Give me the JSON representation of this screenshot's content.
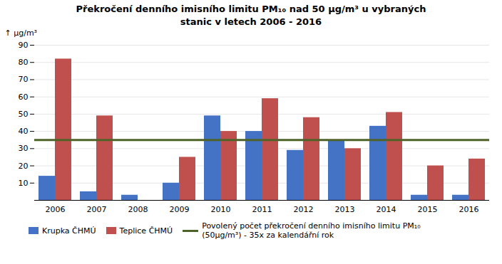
{
  "chart_data": {
    "type": "bar",
    "title": "Překročení denního imisního limitu PM₁₀ nad 50 μg/m³ u vybraných\nstanic v letech 2006 - 2016",
    "ylabel": "μg/m³",
    "categories": [
      2006,
      2007,
      2008,
      2009,
      2010,
      2011,
      2012,
      2013,
      2014,
      2015,
      2016
    ],
    "series": [
      {
        "name": "Krupka ČHMÚ",
        "color": "#4472C4",
        "values": [
          14,
          5,
          3,
          10,
          49,
          40,
          29,
          35,
          43,
          3,
          3
        ]
      },
      {
        "name": "Teplice ČHMÚ",
        "color": "#C0504D",
        "values": [
          82,
          49,
          null,
          25,
          40,
          59,
          48,
          30,
          51,
          20,
          24
        ]
      }
    ],
    "hlines": [
      {
        "name": "Povolený počet překročení denního imisního limitu PM₁₀\n(50μg/m³) - 35x za kalendářní rok",
        "value": 35,
        "color": "#4F6228"
      }
    ],
    "ylim": [
      0,
      90
    ],
    "yticks": [
      10,
      20,
      30,
      40,
      50,
      60,
      70,
      80,
      90
    ],
    "grid": true,
    "legend": "bottom"
  }
}
